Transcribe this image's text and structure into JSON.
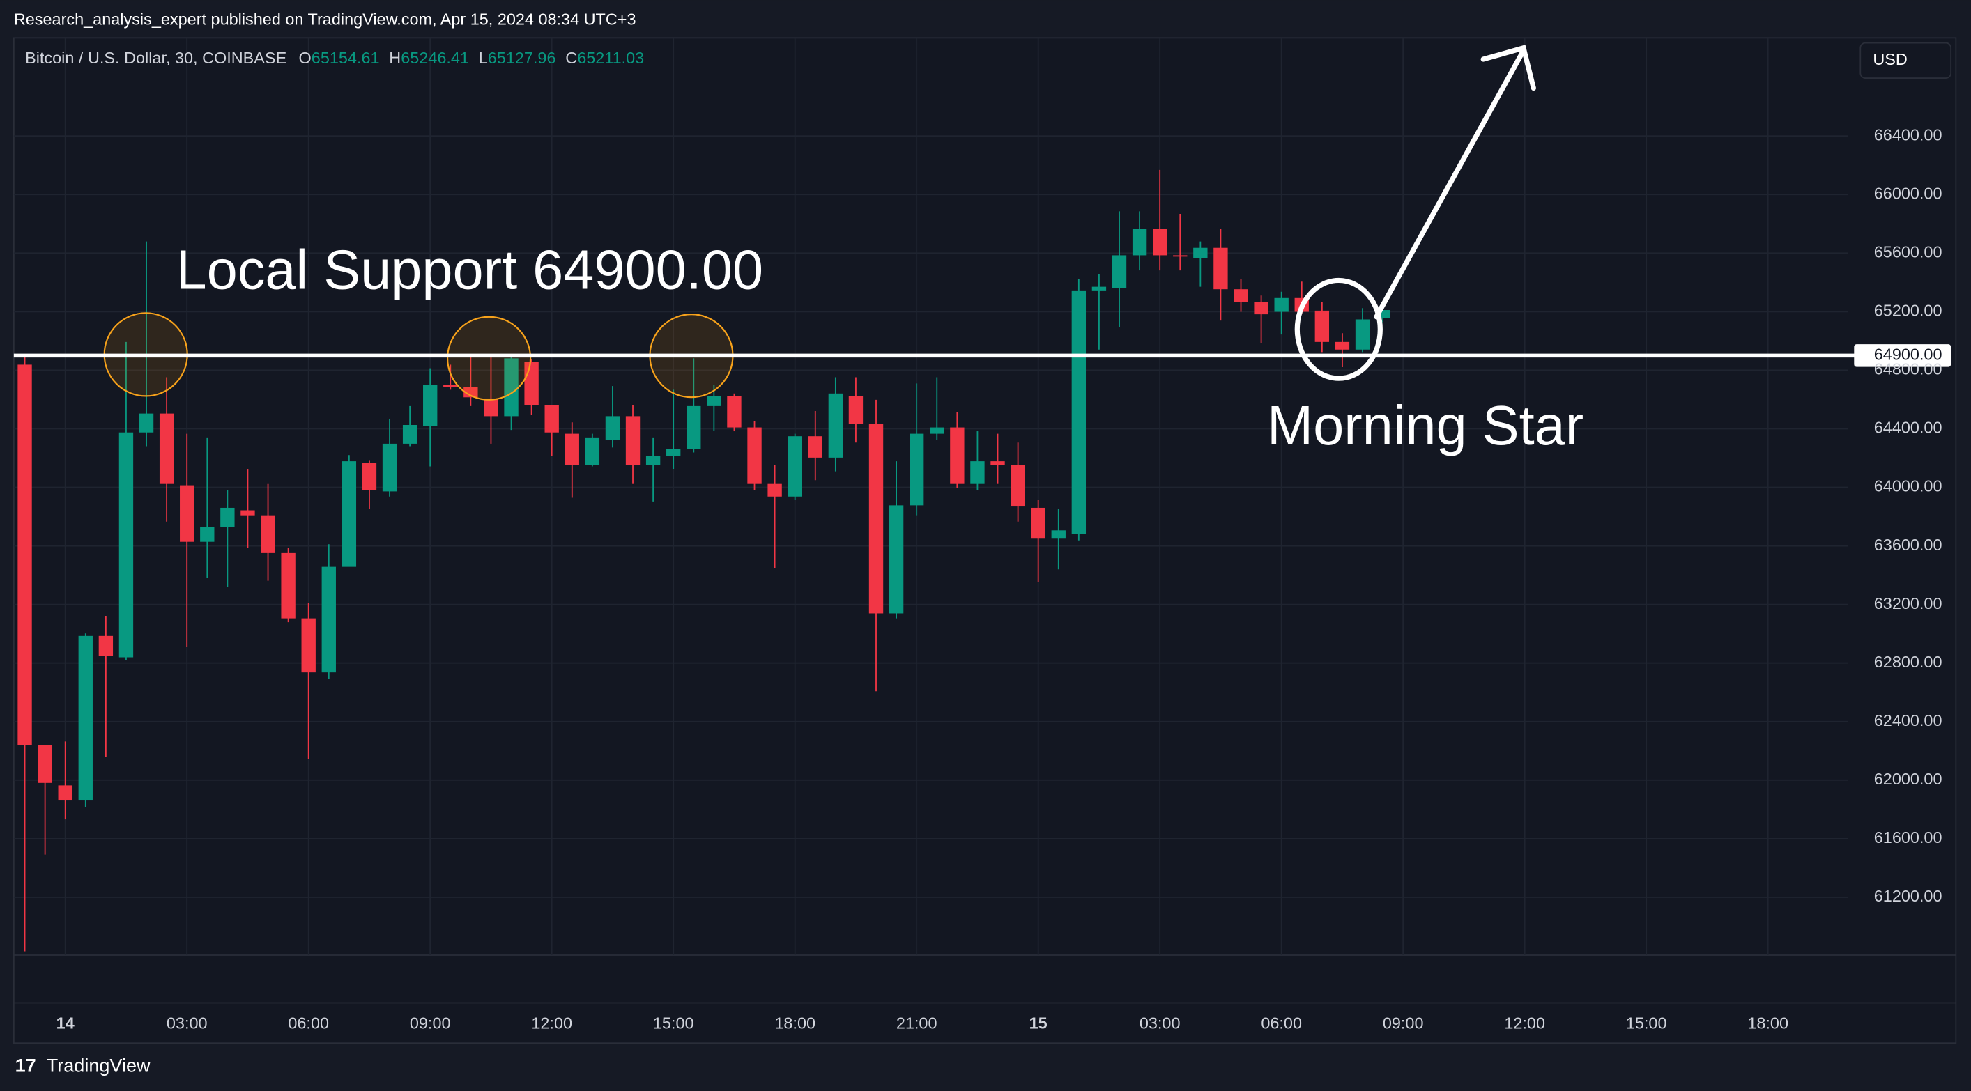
{
  "header": {
    "publisher": "Research_analysis_expert published on TradingView.com, Apr 15, 2024 08:34 UTC+3"
  },
  "footer": {
    "brand": "TradingView"
  },
  "chart_data": {
    "type": "candlestick",
    "symbol": "Bitcoin / U.S. Dollar, 30, COINBASE",
    "ohlc_legend": {
      "o_label": "O",
      "o": 65154.61,
      "h_label": "H",
      "h": 65246.41,
      "l_label": "L",
      "l": 65127.96,
      "c_label": "C",
      "c": 65211.03
    },
    "currency": "USD",
    "up_color": "#089981",
    "down_color": "#f23645",
    "x": [
      -1,
      -0.5,
      0,
      0.5,
      1,
      1.5,
      2,
      2.5,
      3,
      3.5,
      4,
      4.5,
      5,
      5.5,
      6,
      6.5,
      7,
      7.5,
      8,
      8.5,
      9,
      9.5,
      10,
      10.5,
      11,
      11.5,
      12,
      12.5,
      13,
      13.5,
      14,
      14.5,
      15,
      15.5,
      16,
      16.5,
      17,
      17.5,
      18,
      18.5,
      19,
      19.5,
      20,
      20.5,
      21,
      21.5,
      22,
      22.5,
      23,
      23.5,
      24,
      24.5,
      25,
      25.5,
      26,
      26.5,
      27,
      27.5,
      28,
      28.5,
      29,
      29.5,
      30,
      30.5,
      31,
      31.5,
      32,
      32.5
    ],
    "open": [
      64838,
      62238,
      61964,
      61861,
      62985,
      62839,
      64375,
      64504,
      64014,
      63628,
      63731,
      63843,
      63809,
      63551,
      63105,
      62736,
      63457,
      64169,
      63972,
      64298,
      64418,
      64701,
      64684,
      64607,
      64486,
      64855,
      64564,
      64366,
      64152,
      64323,
      64486,
      64152,
      64212,
      64263,
      64555,
      64624,
      64409,
      64023,
      63937,
      64349,
      64203,
      64624,
      64435,
      63139,
      63877,
      64366,
      64409,
      64023,
      64178,
      64152,
      63860,
      63654,
      63680,
      65345,
      65362,
      65585,
      65765,
      65585,
      65568,
      65636,
      65353,
      65267,
      65199,
      65293,
      65207,
      64993,
      64941,
      65154.61
    ],
    "high": [
      64907,
      62238,
      62264,
      63002,
      63122,
      64993,
      65679,
      64752,
      64366,
      64341,
      63980,
      64126,
      64023,
      63585,
      63208,
      63611,
      64220,
      64186,
      64469,
      64555,
      64813,
      64838,
      64898,
      64898,
      64907,
      64873,
      64564,
      64444,
      64366,
      64692,
      64564,
      64341,
      64667,
      64881,
      64701,
      64641,
      64452,
      64152,
      64366,
      64521,
      64752,
      64752,
      64598,
      64178,
      64710,
      64752,
      64512,
      64383,
      64366,
      64306,
      63912,
      63851,
      65422,
      65456,
      65885,
      65885,
      66168,
      65868,
      65679,
      65765,
      65422,
      65310,
      65336,
      65405,
      65267,
      65053,
      65224,
      65246.41
    ],
    "low": [
      60831,
      61492,
      61732,
      61818,
      62161,
      62822,
      64281,
      63766,
      62908,
      63380,
      63319,
      63585,
      63362,
      63079,
      62144,
      62693,
      63465,
      63851,
      63937,
      64281,
      64143,
      64667,
      64555,
      64298,
      64392,
      64495,
      64212,
      63929,
      64143,
      64272,
      64023,
      63903,
      64126,
      64238,
      64383,
      64383,
      63980,
      63448,
      63912,
      64049,
      64109,
      64306,
      62607,
      63105,
      63809,
      64323,
      63997,
      63980,
      64023,
      63766,
      63354,
      63440,
      63637,
      64941,
      65096,
      65482,
      65482,
      65482,
      65370,
      65139,
      65199,
      64984,
      65044,
      65182,
      64924,
      64821,
      64924,
      65127.96
    ],
    "close": [
      62238,
      61981,
      61861,
      62985,
      62847,
      64375,
      64504,
      64023,
      63628,
      63731,
      63860,
      63809,
      63551,
      63105,
      62736,
      63457,
      64178,
      63980,
      64298,
      64426,
      64701,
      64684,
      64615,
      64486,
      64881,
      64564,
      64375,
      64152,
      64341,
      64486,
      64152,
      64212,
      64263,
      64555,
      64624,
      64409,
      64023,
      63937,
      64349,
      64203,
      64641,
      64435,
      63139,
      63877,
      64366,
      64409,
      64023,
      64178,
      64152,
      63869,
      63654,
      63706,
      65345,
      65370,
      65585,
      65765,
      65585,
      65576,
      65636,
      65353,
      65267,
      65182,
      65293,
      65199,
      64993,
      64941,
      65147,
      65211.03
    ],
    "xlim": [
      -1.27,
      43.97
    ],
    "ylim": [
      60805,
      67070
    ],
    "xticks": [
      {
        "value": 0,
        "label": "14"
      },
      {
        "value": 3,
        "label": "03:00"
      },
      {
        "value": 6,
        "label": "06:00"
      },
      {
        "value": 9,
        "label": "09:00"
      },
      {
        "value": 12,
        "label": "12:00"
      },
      {
        "value": 15,
        "label": "15:00"
      },
      {
        "value": 18,
        "label": "18:00"
      },
      {
        "value": 21,
        "label": "21:00"
      },
      {
        "value": 24,
        "label": "15"
      },
      {
        "value": 27,
        "label": "03:00"
      },
      {
        "value": 30,
        "label": "06:00"
      },
      {
        "value": 33,
        "label": "09:00"
      },
      {
        "value": 36,
        "label": "12:00"
      },
      {
        "value": 39,
        "label": "15:00"
      },
      {
        "value": 42,
        "label": "18:00"
      }
    ],
    "yticks": [
      {
        "value": 61200,
        "label": "61200.00"
      },
      {
        "value": 61600,
        "label": "61600.00"
      },
      {
        "value": 62000,
        "label": "62000.00"
      },
      {
        "value": 62400,
        "label": "62400.00"
      },
      {
        "value": 62800,
        "label": "62800.00"
      },
      {
        "value": 63200,
        "label": "63200.00"
      },
      {
        "value": 63600,
        "label": "63600.00"
      },
      {
        "value": 64000,
        "label": "64000.00"
      },
      {
        "value": 64400,
        "label": "64400.00"
      },
      {
        "value": 64800,
        "label": "64800.00"
      },
      {
        "value": 65200,
        "label": "65200.00"
      },
      {
        "value": 65600,
        "label": "65600.00"
      },
      {
        "value": 66000,
        "label": "66000.00"
      },
      {
        "value": 66400,
        "label": "66400.00"
      }
    ],
    "grid": true,
    "support_line": {
      "value": 64900,
      "label": "64900.00",
      "color": "#ffffff"
    },
    "annotations": {
      "support": "Local Support 64900.00",
      "pattern": "Morning Star"
    }
  }
}
